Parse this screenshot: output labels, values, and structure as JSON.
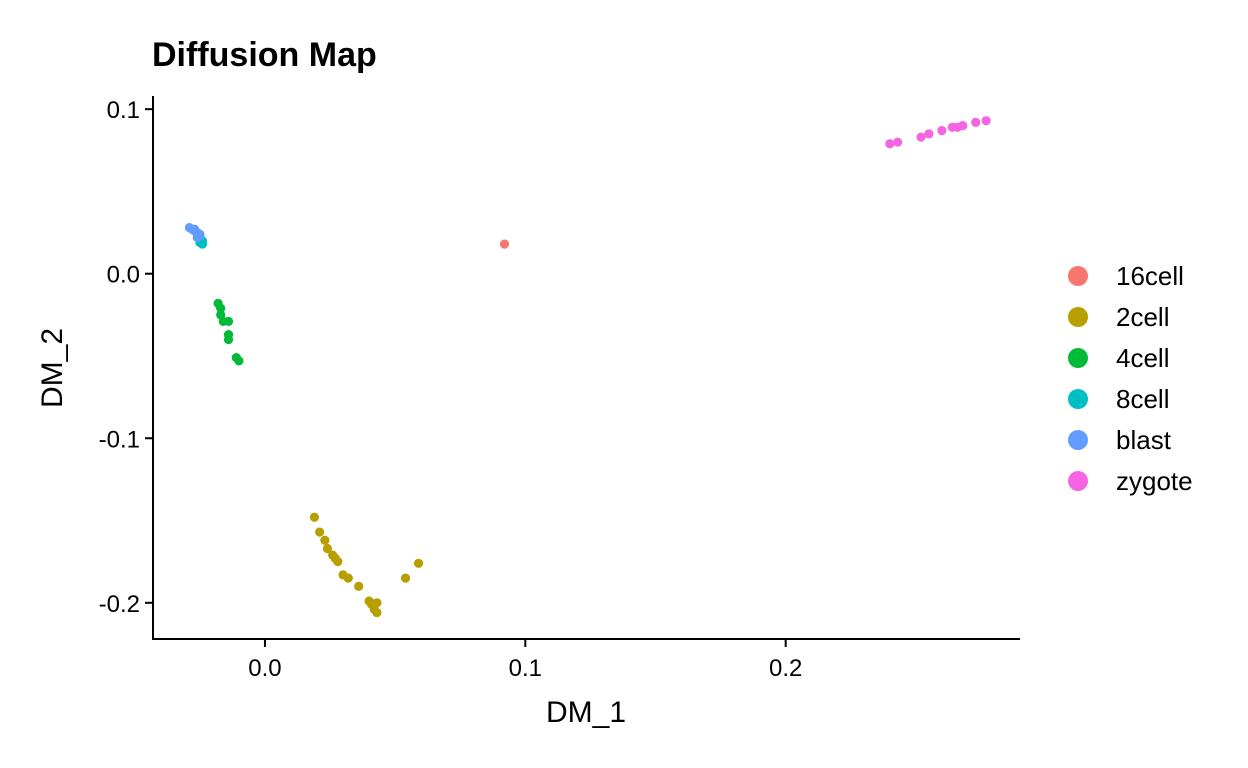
{
  "chart_data": {
    "type": "scatter",
    "title": "Diffusion Map",
    "xlabel": "DM_1",
    "ylabel": "DM_2",
    "xlim": [
      -0.043,
      0.29
    ],
    "ylim": [
      -0.222,
      0.108
    ],
    "xticks": [
      0.0,
      0.1,
      0.2
    ],
    "xtick_labels": [
      "0.0",
      "0.1",
      "0.2"
    ],
    "yticks": [
      0.1,
      0.0,
      -0.1,
      -0.2
    ],
    "ytick_labels": [
      "0.1",
      "0.0",
      "-0.1",
      "-0.2"
    ],
    "grid": false,
    "legend_position": "right",
    "series": [
      {
        "name": "16cell",
        "color": "#F8766D",
        "points": [
          [
            0.092,
            0.018
          ]
        ]
      },
      {
        "name": "2cell",
        "color": "#B79F00",
        "points": [
          [
            0.019,
            -0.148
          ],
          [
            0.021,
            -0.157
          ],
          [
            0.023,
            -0.162
          ],
          [
            0.024,
            -0.167
          ],
          [
            0.026,
            -0.171
          ],
          [
            0.027,
            -0.173
          ],
          [
            0.028,
            -0.175
          ],
          [
            0.03,
            -0.183
          ],
          [
            0.032,
            -0.185
          ],
          [
            0.036,
            -0.19
          ],
          [
            0.04,
            -0.199
          ],
          [
            0.041,
            -0.201
          ],
          [
            0.042,
            -0.204
          ],
          [
            0.043,
            -0.206
          ],
          [
            0.043,
            -0.2
          ],
          [
            0.054,
            -0.185
          ],
          [
            0.059,
            -0.176
          ]
        ]
      },
      {
        "name": "4cell",
        "color": "#00BA38",
        "points": [
          [
            -0.018,
            -0.018
          ],
          [
            -0.017,
            -0.021
          ],
          [
            -0.017,
            -0.025
          ],
          [
            -0.016,
            -0.029
          ],
          [
            -0.014,
            -0.029
          ],
          [
            -0.014,
            -0.037
          ],
          [
            -0.014,
            -0.04
          ],
          [
            -0.011,
            -0.051
          ],
          [
            -0.01,
            -0.053
          ]
        ]
      },
      {
        "name": "8cell",
        "color": "#00BFC4",
        "points": [
          [
            -0.025,
            0.019
          ],
          [
            -0.024,
            0.02
          ],
          [
            -0.025,
            0.021
          ],
          [
            -0.024,
            0.018
          ]
        ]
      },
      {
        "name": "blast",
        "color": "#619CFF",
        "points": [
          [
            -0.029,
            0.028
          ],
          [
            -0.028,
            0.027
          ],
          [
            -0.027,
            0.027
          ],
          [
            -0.027,
            0.026
          ],
          [
            -0.026,
            0.025
          ],
          [
            -0.026,
            0.024
          ],
          [
            -0.025,
            0.024
          ],
          [
            -0.025,
            0.023
          ],
          [
            -0.026,
            0.022
          ]
        ]
      },
      {
        "name": "zygote",
        "color": "#F564E3",
        "points": [
          [
            0.24,
            0.079
          ],
          [
            0.243,
            0.08
          ],
          [
            0.252,
            0.083
          ],
          [
            0.255,
            0.085
          ],
          [
            0.26,
            0.087
          ],
          [
            0.264,
            0.089
          ],
          [
            0.266,
            0.089
          ],
          [
            0.268,
            0.09
          ],
          [
            0.273,
            0.092
          ],
          [
            0.277,
            0.093
          ]
        ]
      }
    ]
  }
}
